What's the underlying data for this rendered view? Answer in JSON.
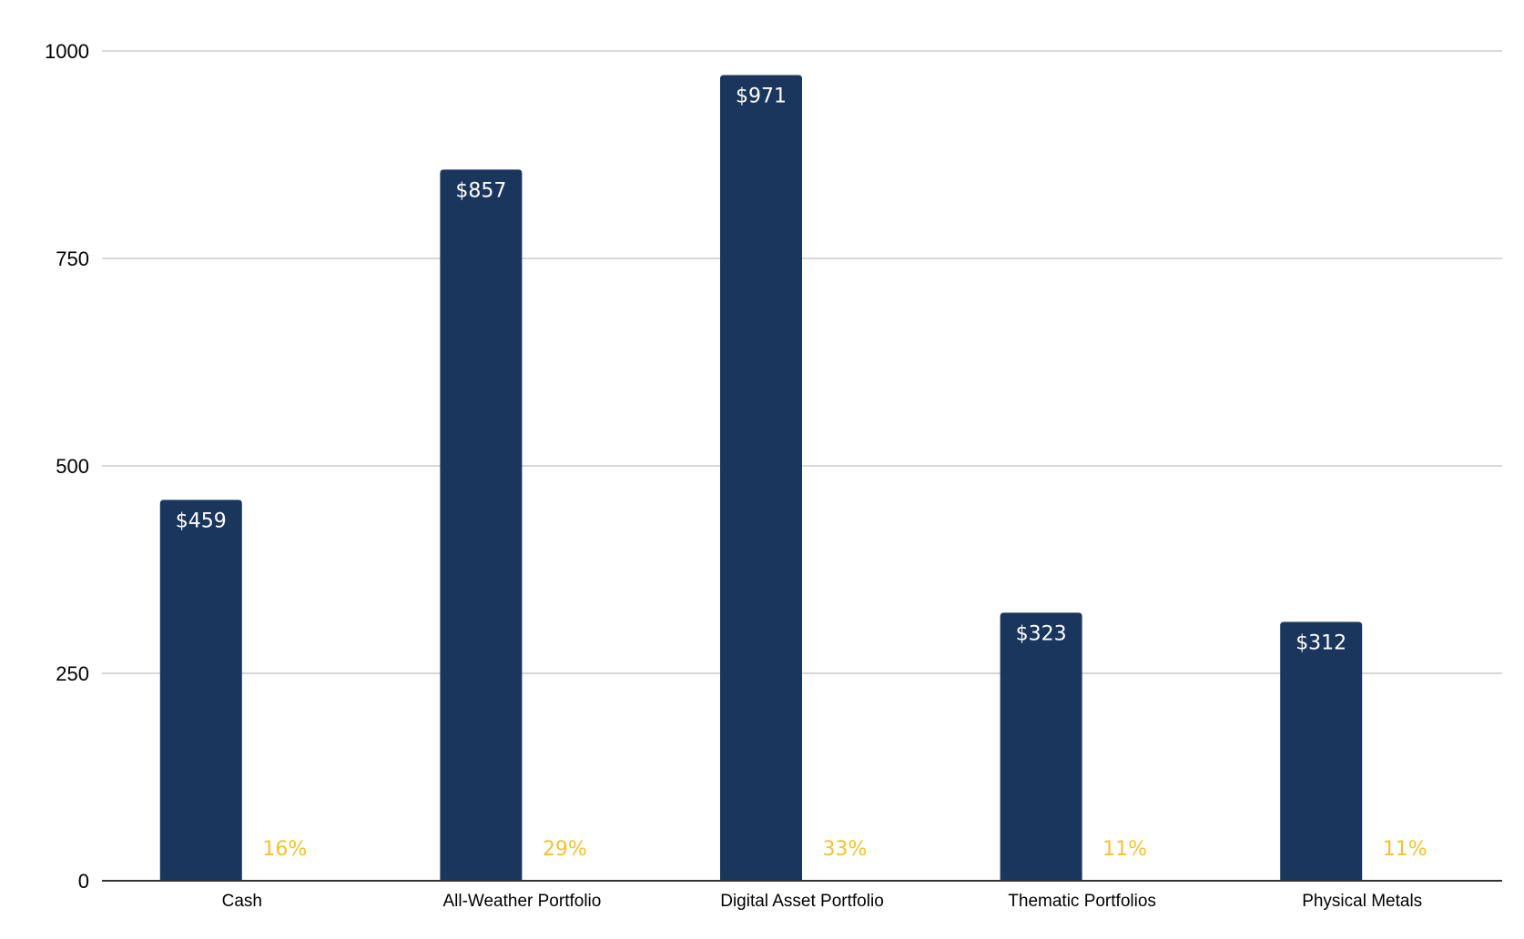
{
  "chart_data": {
    "type": "bar",
    "title": "",
    "xlabel": "",
    "ylabel": "",
    "categories": [
      "Cash",
      "All-Weather Portfolio",
      "Digital Asset Portfolio",
      "Thematic Portfolios",
      "Physical Metals"
    ],
    "series": [
      {
        "values": [
          459,
          857,
          971,
          323,
          312
        ],
        "data_labels": [
          "$459",
          "$857",
          "$971",
          "$323",
          "$312"
        ],
        "color": "#1a365d"
      },
      {
        "values": [
          0.16,
          0.29,
          0.33,
          0.11,
          0.11
        ],
        "data_labels": [
          "16%",
          "29%",
          "33%",
          "11%",
          "11%"
        ],
        "color": "#f1c232"
      }
    ],
    "ylim": [
      0,
      1000
    ],
    "yticks": [
      0,
      250,
      500,
      750,
      1000
    ],
    "ytick_labels": [
      "0",
      "250",
      "500",
      "750",
      "1000"
    ],
    "grid": true,
    "legend": "none"
  }
}
